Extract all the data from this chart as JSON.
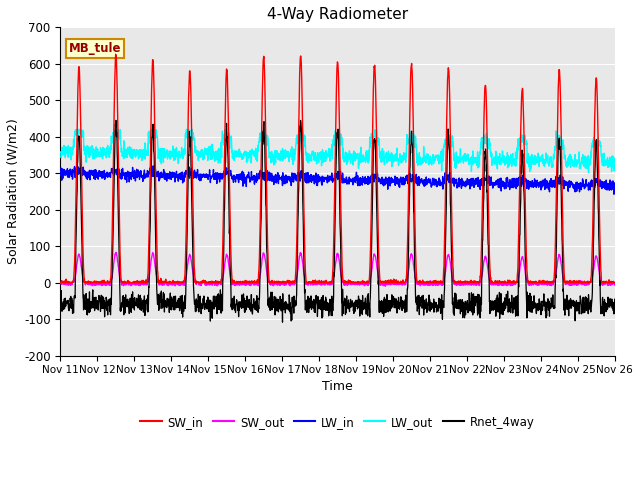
{
  "title": "4-Way Radiometer",
  "xlabel": "Time",
  "ylabel": "Solar Radiation (W/m2)",
  "ylim": [
    -200,
    700
  ],
  "yticks": [
    -200,
    -100,
    0,
    100,
    200,
    300,
    400,
    500,
    600,
    700
  ],
  "n_days": 15,
  "xtick_labels": [
    "Nov 11",
    "Nov 12",
    "Nov 13",
    "Nov 14",
    "Nov 15",
    "Nov 16",
    "Nov 17",
    "Nov 18",
    "Nov 19",
    "Nov 20",
    "Nov 21",
    "Nov 22",
    "Nov 23",
    "Nov 24",
    "Nov 25",
    "Nov 26"
  ],
  "annotation_text": "MB_tule",
  "annotation_bg": "#ffffcc",
  "annotation_border": "#cc8800",
  "background_color": "#e8e8e8",
  "legend_entries": [
    "SW_in",
    "SW_out",
    "LW_in",
    "LW_out",
    "Rnet_4way"
  ],
  "legend_colors": [
    "#ff0000",
    "#ff00ff",
    "#0000ff",
    "#00ffff",
    "#000000"
  ],
  "sw_in_color": "#ff0000",
  "sw_out_color": "#ff00ff",
  "lw_in_color": "#0000ff",
  "lw_out_color": "#00ffff",
  "rnet_color": "#000000",
  "sw_in_peaks": [
    590,
    625,
    610,
    580,
    585,
    620,
    625,
    605,
    600,
    600,
    590,
    543,
    530,
    585,
    560
  ],
  "day_start": 0.33,
  "day_end": 0.67,
  "lw_out_base": 345,
  "lw_in_base": 275,
  "figsize": [
    6.4,
    4.8
  ],
  "dpi": 100
}
